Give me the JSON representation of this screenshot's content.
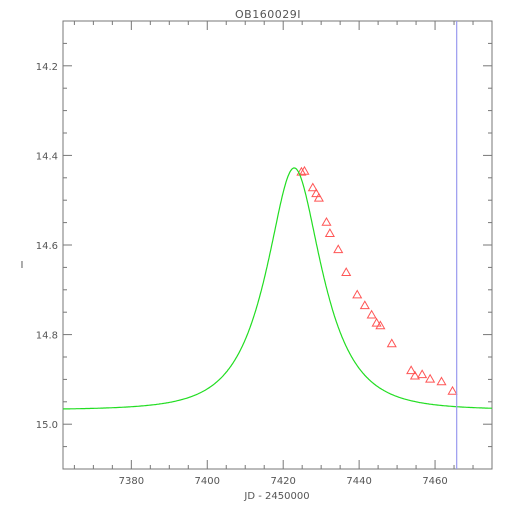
{
  "chart_data": {
    "type": "scatter",
    "title": "OB160029I",
    "xlabel": "JD - 2450000",
    "ylabel": "I",
    "xlim": [
      7362,
      7475
    ],
    "ylim": [
      15.1,
      14.1
    ],
    "y_inverted": true,
    "x_ticks": [
      7380,
      7400,
      7420,
      7440,
      7460
    ],
    "y_ticks": [
      14.2,
      14.4,
      14.6,
      14.8,
      15.0
    ],
    "y_tick_labels": [
      "14.2",
      "14.4",
      "14.6",
      "14.8",
      "15.0"
    ],
    "grid": false,
    "series": [
      {
        "kind": "points",
        "marker": "triangle-open",
        "color": "#ff5555",
        "x": [
          7424.8,
          7425.6,
          7427.8,
          7428.7,
          7429.4,
          7431.4,
          7432.3,
          7434.5,
          7436.6,
          7439.5,
          7441.5,
          7443.3,
          7444.6,
          7445.6,
          7448.6,
          7453.7,
          7454.7,
          7456.6,
          7458.7,
          7461.7,
          7464.6
        ],
        "y": [
          14.437,
          14.435,
          14.472,
          14.485,
          14.495,
          14.549,
          14.574,
          14.61,
          14.661,
          14.711,
          14.735,
          14.756,
          14.774,
          14.78,
          14.82,
          14.88,
          14.892,
          14.889,
          14.899,
          14.905,
          14.926
        ]
      },
      {
        "kind": "model-curve",
        "color": "#22dd22",
        "model": {
          "baseline": 14.968,
          "t0": 7422.9,
          "tE": 12.3,
          "u0": 0.52
        }
      },
      {
        "kind": "vertical-line",
        "color": "#9999ee",
        "x": 7465.7
      }
    ]
  }
}
